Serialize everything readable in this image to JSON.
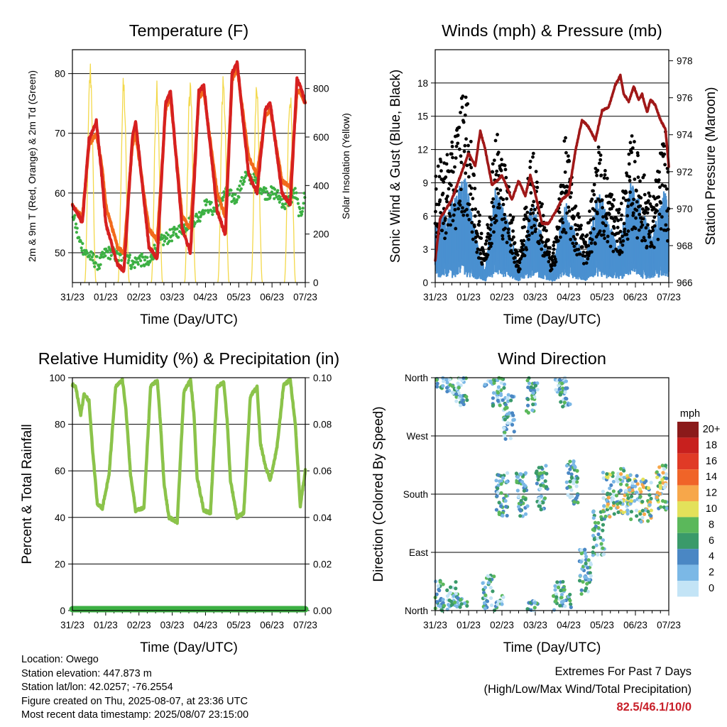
{
  "colors": {
    "temp_2m": "#d62020",
    "temp_9m": "#f26a1b",
    "dewpoint": "#3cb043",
    "solar": "#f3d84a",
    "wind": "#4a90d0",
    "gust": "#000000",
    "pressure": "#a01818",
    "rh": "#8bc34a",
    "precip": "#3cb043",
    "extremes": "#c8202a"
  },
  "chart_data": [
    {
      "type": "line",
      "title": "Temperature (F)",
      "xlabel": "Time (Day/UTC)",
      "ylabel": "2m & 9m T (Red, Orange) & 2m Td (Green)",
      "y2label": "Solar Insolation (Yellow)",
      "x_ticks": [
        "31/23",
        "01/23",
        "02/23",
        "03/23",
        "04/23",
        "05/23",
        "06/23",
        "07/23"
      ],
      "ylim": [
        45,
        84
      ],
      "y_ticks": [
        50,
        60,
        70,
        80
      ],
      "y2lim": [
        0,
        960
      ],
      "y2_ticks": [
        0,
        200,
        400,
        600,
        800
      ],
      "grid": true,
      "series": [
        {
          "name": "2m T",
          "x_days": [
            0,
            0.12,
            0.3,
            0.5,
            0.72,
            0.9,
            1.0,
            1.35,
            1.55,
            1.8,
            1.9,
            2.3,
            2.55,
            2.8,
            2.95,
            3.3,
            3.55,
            3.8,
            3.95,
            4.35,
            4.6,
            4.8,
            4.95,
            5.3,
            5.55,
            5.8,
            5.95,
            6.3,
            6.55,
            6.75,
            6.85,
            7.0
          ],
          "values": [
            58,
            57,
            55,
            69,
            72,
            62,
            55,
            48,
            47,
            69,
            72,
            51,
            49,
            75,
            77,
            54,
            50,
            77,
            78,
            57,
            53,
            80,
            82,
            63,
            60,
            74,
            75,
            60,
            58,
            79,
            78,
            75
          ]
        },
        {
          "name": "9m T",
          "x_days": [
            0,
            0.12,
            0.3,
            0.5,
            0.72,
            0.9,
            1.0,
            1.35,
            1.55,
            1.8,
            1.9,
            2.3,
            2.55,
            2.8,
            2.95,
            3.3,
            3.55,
            3.8,
            3.95,
            4.35,
            4.6,
            4.8,
            4.95,
            5.3,
            5.55,
            5.8,
            5.95,
            6.3,
            6.55,
            6.75,
            6.85,
            7.0
          ],
          "values": [
            58,
            57,
            56,
            68,
            70,
            64,
            58,
            51,
            50,
            68,
            70,
            54,
            52,
            74,
            76,
            56,
            54,
            76,
            77,
            60,
            56,
            79,
            81,
            66,
            63,
            73,
            74,
            62,
            61,
            77,
            77,
            75
          ]
        },
        {
          "name": "2m Td",
          "x_days": [
            0,
            0.2,
            0.4,
            0.6,
            0.8,
            1.0,
            1.2,
            1.4,
            1.6,
            1.8,
            2.0,
            2.3,
            2.5,
            2.7,
            3.0,
            3.3,
            3.5,
            3.8,
            4.0,
            4.3,
            4.6,
            4.9,
            5.2,
            5.5,
            5.8,
            6.1,
            6.4,
            6.7,
            6.85,
            7.0
          ],
          "values": [
            57,
            52,
            50,
            49,
            48,
            50,
            50,
            49,
            50,
            48,
            49,
            48,
            51,
            52,
            53,
            54,
            55,
            56,
            58,
            57,
            60,
            59,
            63,
            62,
            60,
            60,
            58,
            60,
            56,
            60
          ]
        },
        {
          "name": "Solar Insolation",
          "x_days": [
            0,
            0.54,
            1.54,
            2.54,
            3.54,
            4.54,
            5.54,
            6.54
          ],
          "values": [
            0,
            930,
            860,
            875,
            870,
            890,
            860,
            845
          ]
        }
      ]
    },
    {
      "type": "scatter",
      "title": "Winds (mph) & Pressure (mb)",
      "xlabel": "Time (Day/UTC)",
      "ylabel": "Sonic Wind & Gust (Blue, Black)",
      "y2label": "Station Pressure (Maroon)",
      "x_ticks": [
        "31/23",
        "01/23",
        "02/23",
        "03/23",
        "04/23",
        "05/23",
        "06/23",
        "07/23"
      ],
      "ylim": [
        0,
        21
      ],
      "y_ticks": [
        0,
        3,
        6,
        9,
        12,
        15,
        18
      ],
      "y2lim": [
        966,
        978.6
      ],
      "y2_ticks": [
        966,
        968,
        970,
        972,
        974,
        976,
        978
      ],
      "grid": true,
      "series": [
        {
          "name": "Station Pressure",
          "x_days": [
            0,
            0.15,
            0.3,
            0.5,
            0.7,
            0.9,
            1.0,
            1.2,
            1.35,
            1.5,
            1.7,
            1.85,
            2.0,
            2.3,
            2.5,
            2.7,
            2.85,
            3.0,
            3.2,
            3.4,
            3.6,
            3.8,
            4.0,
            4.2,
            4.4,
            4.6,
            4.8,
            5.0,
            5.2,
            5.4,
            5.55,
            5.65,
            5.8,
            5.95,
            6.1,
            6.2,
            6.35,
            6.45,
            6.6,
            6.75,
            6.9,
            7.0
          ],
          "values": [
            967.2,
            969.5,
            969.9,
            970.5,
            971.5,
            972.5,
            973.0,
            972.3,
            974.2,
            973.2,
            971.3,
            971.5,
            971.8,
            970.5,
            971.5,
            970.7,
            971.8,
            970.8,
            969.2,
            969.2,
            969.8,
            970.5,
            970.8,
            973.1,
            974.8,
            974.4,
            973.7,
            975.3,
            975.5,
            976.7,
            977.2,
            976.2,
            975.8,
            976.6,
            975.9,
            976.2,
            975.2,
            975.9,
            975.6,
            974.8,
            974.3,
            972.3
          ]
        }
      ],
      "wind_envelope": {
        "x_days": [
          0,
          0.5,
          0.9,
          1.2,
          1.5,
          1.8,
          2.2,
          2.5,
          2.9,
          3.2,
          3.5,
          3.9,
          4.2,
          4.5,
          4.9,
          5.2,
          5.5,
          5.9,
          6.2,
          6.5,
          6.9,
          7.0
        ],
        "values": [
          5,
          7,
          9,
          4,
          1,
          8,
          5,
          1,
          7,
          4,
          1,
          7,
          4,
          2,
          8,
          5,
          3,
          9,
          6,
          4,
          8,
          5
        ]
      },
      "gust_envelope": {
        "x_days": [
          0,
          0.5,
          0.9,
          1.2,
          1.5,
          1.8,
          2.2,
          2.5,
          2.9,
          3.2,
          3.5,
          3.9,
          4.2,
          4.5,
          4.9,
          5.2,
          5.5,
          5.9,
          6.2,
          6.5,
          6.9,
          7.0
        ],
        "values": [
          10,
          12,
          18,
          8,
          3,
          14,
          9,
          2,
          12,
          7,
          2,
          13,
          7,
          4,
          12,
          9,
          6,
          13,
          10,
          7,
          14,
          8
        ]
      }
    },
    {
      "type": "line",
      "title": "Relative Humidity (%) & Precipitation (in)",
      "xlabel": "Time (Day/UTC)",
      "ylabel": "Percent & Total Rainfall",
      "x_ticks": [
        "31/23",
        "01/23",
        "02/23",
        "03/23",
        "04/23",
        "05/23",
        "06/23",
        "07/23"
      ],
      "ylim": [
        0,
        100
      ],
      "y_ticks": [
        0,
        20,
        40,
        60,
        80,
        100
      ],
      "y2lim": [
        0,
        0.1
      ],
      "y2_ticks": [
        "0.00",
        "0.02",
        "0.04",
        "0.06",
        "0.08",
        "0.10"
      ],
      "grid": true,
      "series": [
        {
          "name": "Relative Humidity",
          "x_days": [
            0,
            0.1,
            0.25,
            0.35,
            0.5,
            0.6,
            0.75,
            0.9,
            1.1,
            1.3,
            1.5,
            1.6,
            1.75,
            1.9,
            2.15,
            2.35,
            2.55,
            2.65,
            2.75,
            2.9,
            3.15,
            3.35,
            3.55,
            3.65,
            3.75,
            3.95,
            4.15,
            4.35,
            4.55,
            4.65,
            4.75,
            4.95,
            5.15,
            5.35,
            5.55,
            5.65,
            5.8,
            5.95,
            6.15,
            6.35,
            6.55,
            6.7,
            6.85,
            7.0
          ],
          "values": [
            97,
            96,
            84,
            93,
            90,
            70,
            46,
            44,
            58,
            96,
            99,
            88,
            58,
            43,
            44,
            96,
            99,
            80,
            55,
            40,
            38,
            94,
            99,
            85,
            57,
            43,
            42,
            96,
            98,
            82,
            56,
            40,
            42,
            92,
            96,
            72,
            62,
            56,
            70,
            97,
            99,
            80,
            45,
            60
          ]
        },
        {
          "name": "Total Rainfall",
          "x_days": [
            0,
            7.0
          ],
          "values": [
            0,
            0
          ]
        }
      ]
    },
    {
      "type": "scatter",
      "title": "Wind Direction",
      "xlabel": "Time (Day/UTC)",
      "ylabel": "Direction (Colored By Speed)",
      "x_ticks": [
        "31/23",
        "01/23",
        "02/23",
        "03/23",
        "04/23",
        "05/23",
        "06/23",
        "07/23"
      ],
      "y_ticks": [
        "North",
        "East",
        "South",
        "West",
        "North"
      ],
      "grid": true,
      "legend": {
        "title": "mph",
        "labels": [
          "20+",
          "18",
          "16",
          "14",
          "12",
          "10",
          "8",
          "6",
          "4",
          "2",
          "0"
        ],
        "colors": [
          "#8b1a1a",
          "#c8201e",
          "#e03a26",
          "#f06428",
          "#f7a74a",
          "#e3e15a",
          "#5bb85b",
          "#3a9a6a",
          "#4a87c4",
          "#7bb8e6",
          "#c3e4f6"
        ]
      },
      "series": [
        {
          "name": "Direction clusters (deg)",
          "x_days": [
            0.1,
            0.5,
            0.8,
            1.6,
            1.9,
            2.0,
            2.2,
            2.6,
            2.9,
            3.2,
            3.7,
            3.9,
            4.1,
            4.5,
            4.9,
            5.2,
            5.6,
            5.9,
            6.3,
            6.8
          ],
          "values": [
            15,
            10,
            350,
            20,
            350,
            180,
            300,
            180,
            340,
            190,
            10,
            350,
            200,
            60,
            120,
            180,
            185,
            175,
            170,
            190
          ]
        }
      ]
    }
  ],
  "info": {
    "location": "Location: Owego",
    "elevation": "Station elevation: 447.873 m",
    "latlon": "Station lat/lon: 42.0257; -76.2554",
    "created": "Figure created on Thu, 2025-08-07, at 23:36 UTC",
    "recent": "Most recent data timestamp: 2025/08/07 23:15:00"
  },
  "extremes": {
    "title": "Extremes For Past 7 Days",
    "subtitle": "(High/Low/Max Wind/Total Precipitation)",
    "values": "82.5/46.1/10/0"
  }
}
